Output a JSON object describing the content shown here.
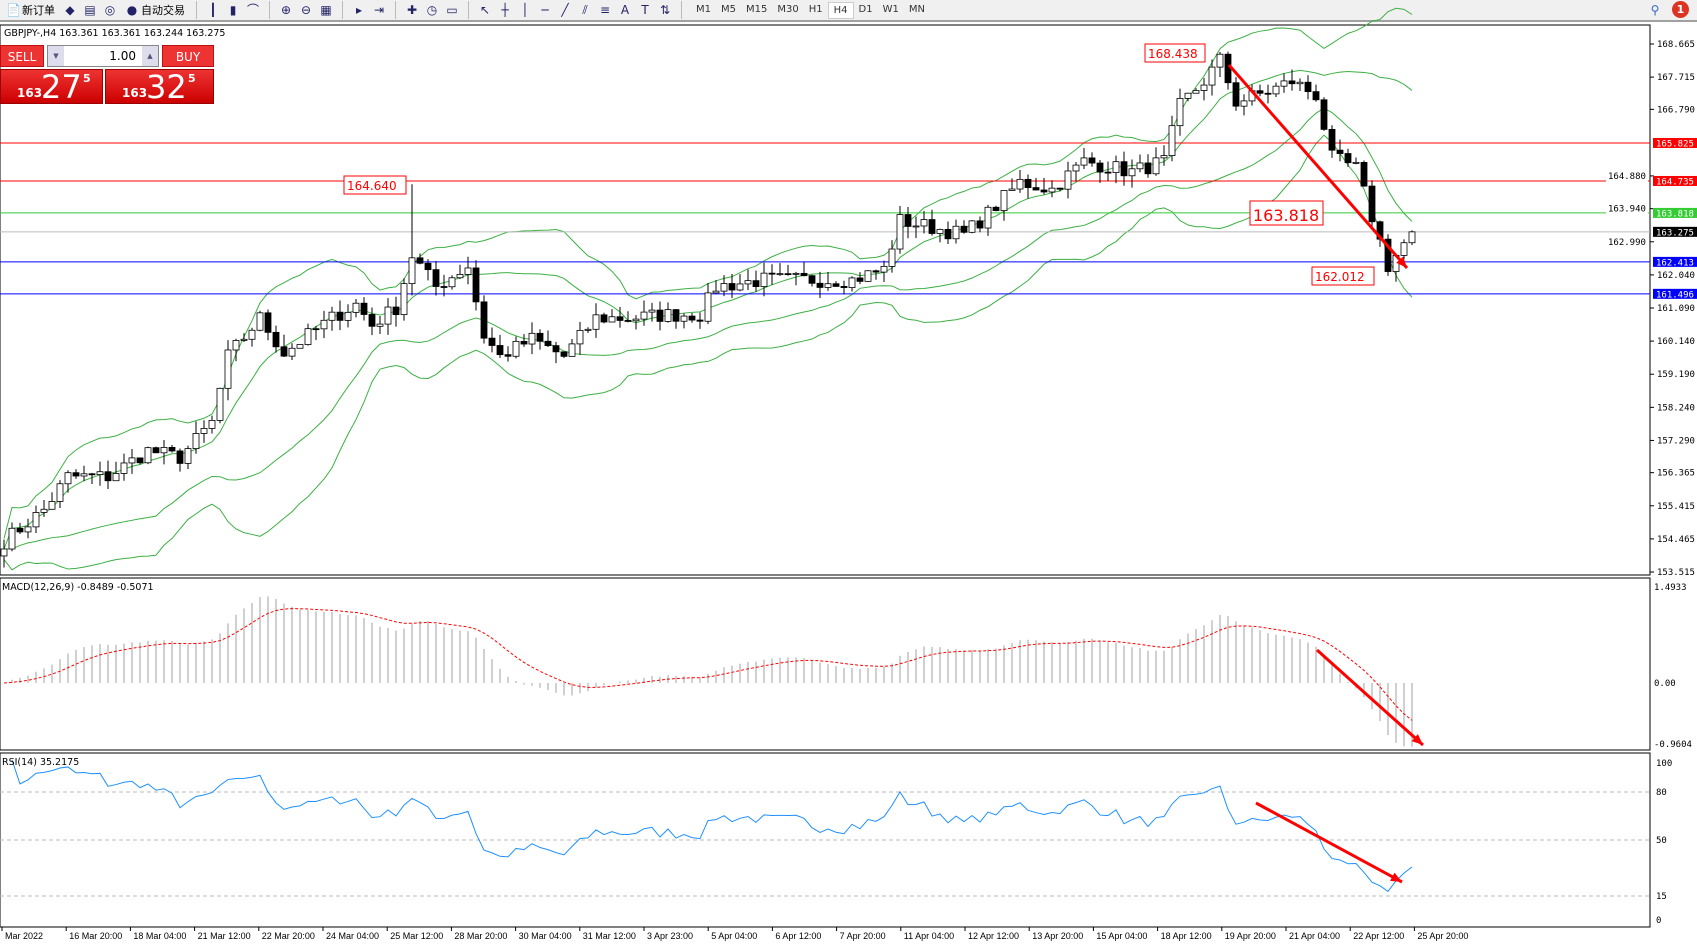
{
  "toolbar": {
    "new_order": "新订单",
    "auto_trade": "自动交易",
    "timeframes": [
      "M1",
      "M5",
      "M15",
      "M30",
      "H1",
      "H4",
      "D1",
      "W1",
      "MN"
    ],
    "active_timeframe": "H4",
    "notifications": "1"
  },
  "info": "GBPJPY-,H4  163.361 163.361 163.244 163.275",
  "trade": {
    "sell": "SELL",
    "buy": "BUY",
    "lot": "1.00",
    "sell_small": "163",
    "sell_big": "27",
    "sell_sup": "5",
    "buy_small": "163",
    "buy_big": "32",
    "buy_sup": "5"
  },
  "macd_label": "MACD(12,26,9) -0.8489 -0.5071",
  "rsi_label": "RSI(14) 35.2175",
  "chart_data": {
    "type": "candlestick",
    "symbol": "GBPJPY-",
    "timeframe": "H4",
    "ylim": [
      153.515,
      168.665
    ],
    "y_ticks": [
      "168.665",
      "167.715",
      "166.790",
      "164.880",
      "163.940",
      "162.990",
      "162.040",
      "161.090",
      "160.140",
      "159.190",
      "158.240",
      "157.290",
      "156.365",
      "155.415",
      "154.465",
      "153.515"
    ],
    "x_ticks": [
      "Mar 2022",
      "16 Mar 20:00",
      "18 Mar 04:00",
      "21 Mar 12:00",
      "22 Mar 20:00",
      "24 Mar 04:00",
      "25 Mar 12:00",
      "28 Mar 20:00",
      "30 Mar 04:00",
      "31 Mar 12:00",
      "3 Apr 23:00",
      "5 Apr 04:00",
      "6 Apr 12:00",
      "7 Apr 20:00",
      "11 Apr 04:00",
      "12 Apr 12:00",
      "13 Apr 20:00",
      "15 Apr 04:00",
      "18 Apr 12:00",
      "19 Apr 20:00",
      "21 Apr 04:00",
      "22 Apr 12:00",
      "25 Apr 20:00"
    ],
    "close_keypoints": [
      [
        0,
        154.4
      ],
      [
        5,
        155.3
      ],
      [
        8,
        156.25
      ],
      [
        13,
        156.25
      ],
      [
        18,
        157.0
      ],
      [
        22,
        156.8
      ],
      [
        26,
        157.8
      ],
      [
        28,
        159.7
      ],
      [
        32,
        160.8
      ],
      [
        35,
        159.8
      ],
      [
        41,
        160.8
      ],
      [
        44,
        161.2
      ],
      [
        46,
        160.6
      ],
      [
        49,
        161.1
      ],
      [
        51,
        162.6
      ],
      [
        54,
        161.7
      ],
      [
        58,
        162.3
      ],
      [
        60,
        160.3
      ],
      [
        62,
        159.7
      ],
      [
        66,
        160.2
      ],
      [
        70,
        159.7
      ],
      [
        74,
        160.8
      ],
      [
        78,
        160.8
      ],
      [
        83,
        160.9
      ],
      [
        87,
        160.9
      ],
      [
        89,
        161.7
      ],
      [
        95,
        161.9
      ],
      [
        100,
        161.9
      ],
      [
        106,
        161.9
      ],
      [
        110,
        162.2
      ],
      [
        112,
        163.6
      ],
      [
        116,
        163.4
      ],
      [
        120,
        163.2
      ],
      [
        123,
        163.8
      ],
      [
        127,
        164.7
      ],
      [
        131,
        164.5
      ],
      [
        135,
        165.3
      ],
      [
        141,
        165.0
      ],
      [
        145,
        165.3
      ],
      [
        147,
        166.9
      ],
      [
        150,
        167.6
      ],
      [
        152,
        168.2
      ],
      [
        154,
        167.0
      ],
      [
        158,
        167.3
      ],
      [
        161,
        167.6
      ],
      [
        164,
        167.2
      ],
      [
        166,
        165.4
      ],
      [
        169,
        165.1
      ],
      [
        171,
        163.7
      ],
      [
        173,
        162.3
      ],
      [
        174,
        162.6
      ],
      [
        176,
        163.275
      ]
    ],
    "indicators": [
      "Bollinger Bands",
      "Envelopes",
      "MACD(12,26,9)",
      "RSI(14)"
    ],
    "hlines": [
      {
        "price": "165.825",
        "color": "#ff0000"
      },
      {
        "price": "164.735",
        "color": "#ff0000"
      },
      {
        "price": "163.818",
        "color": "#33cc33"
      },
      {
        "price": "163.275",
        "color": "#000000"
      },
      {
        "price": "162.413",
        "color": "#0000ff"
      },
      {
        "price": "161.496",
        "color": "#0000ff"
      }
    ],
    "annotations": [
      "168.438",
      "164.640",
      "163.818",
      "162.012"
    ],
    "macd_ticks": [
      "1.4933",
      "0.00",
      "-0.9604"
    ],
    "rsi_ticks": [
      "100",
      "80",
      "50",
      "15",
      "0"
    ]
  }
}
